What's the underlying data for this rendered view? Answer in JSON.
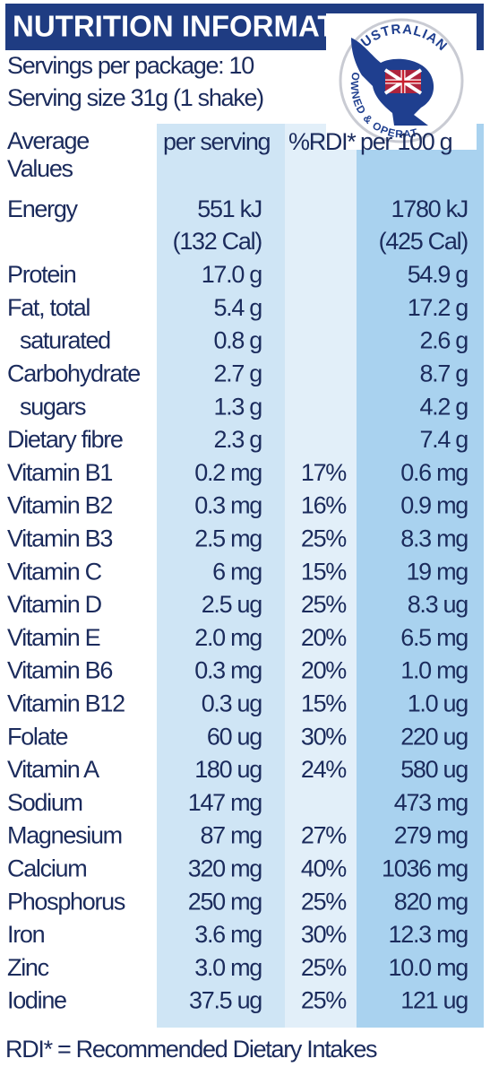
{
  "header": {
    "title": "NUTRITION INFORMATION",
    "servings_per_package": "Servings per package: 10",
    "serving_size": "Serving size 31g (1 shake)"
  },
  "badge": {
    "top": "AUSTRALIAN",
    "bottom": "OWNED & OPERATED"
  },
  "table": {
    "columns": [
      "Average Values",
      "per serving",
      "%RDI*",
      "per 100 g"
    ],
    "rows": [
      {
        "name": "Energy",
        "per_serving": [
          "551 kJ",
          "(132 Cal)"
        ],
        "rdi": null,
        "per_100g": [
          "1780 kJ",
          "(425 Cal)"
        ]
      },
      {
        "name": "Protein",
        "per_serving": "17.0 g",
        "rdi": null,
        "per_100g": "54.9 g"
      },
      {
        "name": "Fat, total",
        "per_serving": "5.4 g",
        "rdi": null,
        "per_100g": "17.2 g"
      },
      {
        "name": "saturated",
        "indent": true,
        "per_serving": "0.8 g",
        "rdi": null,
        "per_100g": "2.6 g"
      },
      {
        "name": "Carbohydrate",
        "per_serving": "2.7 g",
        "rdi": null,
        "per_100g": "8.7 g"
      },
      {
        "name": "sugars",
        "indent": true,
        "per_serving": "1.3 g",
        "rdi": null,
        "per_100g": "4.2 g"
      },
      {
        "name": "Dietary fibre",
        "per_serving": "2.3 g",
        "rdi": null,
        "per_100g": "7.4 g"
      },
      {
        "name": "Vitamin B1",
        "per_serving": "0.2 mg",
        "rdi": "17%",
        "per_100g": "0.6 mg"
      },
      {
        "name": "Vitamin B2",
        "per_serving": "0.3 mg",
        "rdi": "16%",
        "per_100g": "0.9 mg"
      },
      {
        "name": "Vitamin B3",
        "per_serving": "2.5 mg",
        "rdi": "25%",
        "per_100g": "8.3 mg"
      },
      {
        "name": "Vitamin C",
        "per_serving": "6 mg",
        "rdi": "15%",
        "per_100g": "19 mg"
      },
      {
        "name": "Vitamin D",
        "per_serving": "2.5 ug",
        "rdi": "25%",
        "per_100g": "8.3 ug"
      },
      {
        "name": "Vitamin E",
        "per_serving": "2.0 mg",
        "rdi": "20%",
        "per_100g": "6.5 mg"
      },
      {
        "name": "Vitamin B6",
        "per_serving": "0.3 mg",
        "rdi": "20%",
        "per_100g": "1.0 mg"
      },
      {
        "name": "Vitamin B12",
        "per_serving": "0.3 ug",
        "rdi": "15%",
        "per_100g": "1.0 ug"
      },
      {
        "name": "Folate",
        "per_serving": "60 ug",
        "rdi": "30%",
        "per_100g": "220 ug"
      },
      {
        "name": "Vitamin A",
        "per_serving": "180 ug",
        "rdi": "24%",
        "per_100g": "580 ug"
      },
      {
        "name": "Sodium",
        "per_serving": "147 mg",
        "rdi": null,
        "per_100g": "473 mg"
      },
      {
        "name": "Magnesium",
        "per_serving": "87 mg",
        "rdi": "27%",
        "per_100g": "279 mg"
      },
      {
        "name": "Calcium",
        "per_serving": "320 mg",
        "rdi": "40%",
        "per_100g": "1036 mg"
      },
      {
        "name": "Phosphorus",
        "per_serving": "250 mg",
        "rdi": "25%",
        "per_100g": "820 mg"
      },
      {
        "name": "Iron",
        "per_serving": "3.6 mg",
        "rdi": "30%",
        "per_100g": "12.3 mg"
      },
      {
        "name": "Zinc",
        "per_serving": "3.0 mg",
        "rdi": "25%",
        "per_100g": "10.0 mg"
      },
      {
        "name": "Iodine",
        "per_serving": "37.5 ug",
        "rdi": "25%",
        "per_100g": "121 ug"
      }
    ]
  },
  "footer": "RDI* = Recommended Dietary Intakes"
}
